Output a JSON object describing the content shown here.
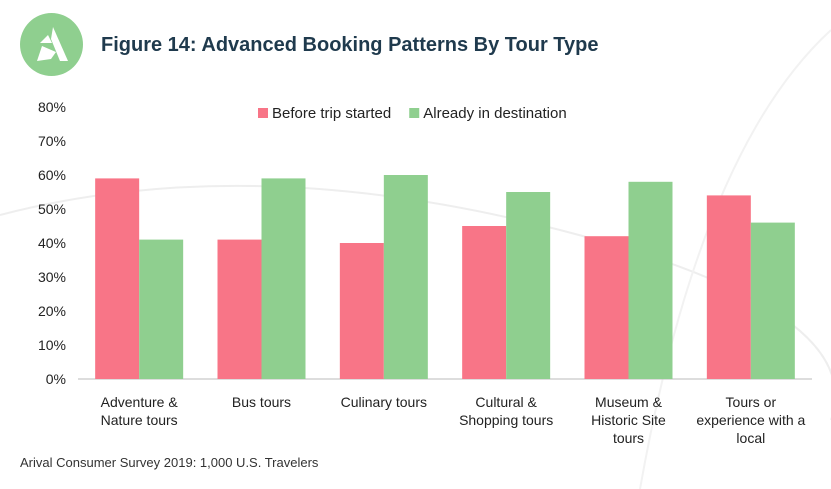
{
  "title": "Figure 14: Advanced Booking Patterns By Tour Type",
  "source": "Arival Consumer Survey 2019: 1,000 U.S. Travelers",
  "logo_text": "A",
  "colors": {
    "before": "#f87587",
    "destination": "#8fcf8f"
  },
  "chart_data": {
    "type": "bar",
    "title": "Figure 14: Advanced Booking Patterns By Tour Type",
    "categories": [
      [
        "Adventure &",
        "Nature tours"
      ],
      [
        "Bus tours"
      ],
      [
        "Culinary tours"
      ],
      [
        "Cultural &",
        "Shopping tours"
      ],
      [
        "Museum &",
        "Historic Site",
        "tours"
      ],
      [
        "Tours or",
        "experience with a",
        "local"
      ]
    ],
    "series": [
      {
        "name": "Before trip started",
        "values": [
          59,
          41,
          40,
          45,
          42,
          54
        ]
      },
      {
        "name": "Already in destination",
        "values": [
          41,
          59,
          60,
          55,
          58,
          46
        ]
      }
    ],
    "yticks": [
      "0%",
      "10%",
      "20%",
      "30%",
      "40%",
      "50%",
      "60%",
      "70%",
      "80%"
    ],
    "ylim": [
      0,
      80
    ],
    "grid": false,
    "legend": "top"
  }
}
